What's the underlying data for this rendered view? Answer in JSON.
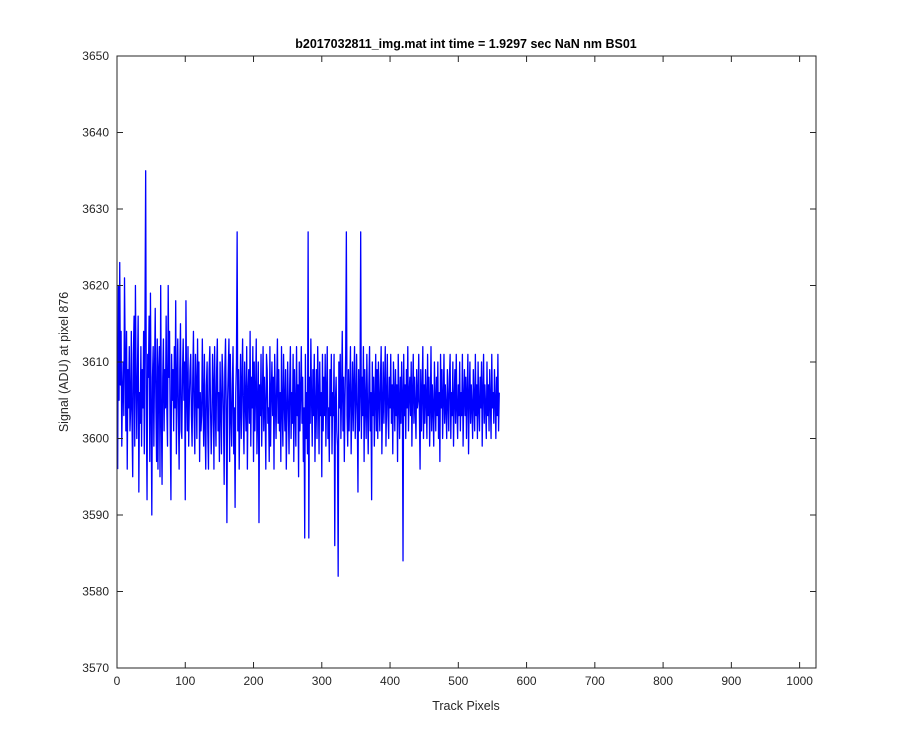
{
  "chart_data": {
    "type": "line",
    "title": "b2017032811_img.mat int time = 1.9297 sec  NaN nm BS01",
    "xlabel": "Track Pixels",
    "ylabel": "Signal (ADU) at pixel 876",
    "xlim": [
      0,
      1024
    ],
    "ylim": [
      3570,
      3650
    ],
    "xticks": [
      0,
      100,
      200,
      300,
      400,
      500,
      600,
      700,
      800,
      900,
      1000
    ],
    "yticks": [
      3570,
      3580,
      3590,
      3600,
      3610,
      3620,
      3630,
      3640,
      3650
    ],
    "grid": false,
    "line_color": "#0000ff",
    "series": [
      {
        "x_start": 1,
        "x_step": 1,
        "values": [
          3596,
          3620,
          3605,
          3623,
          3607,
          3614,
          3599,
          3606,
          3610,
          3603,
          3621,
          3611,
          3601,
          3614,
          3596,
          3609,
          3604,
          3612,
          3601,
          3604,
          3614,
          3602,
          3595,
          3611,
          3616,
          3599,
          3620,
          3608,
          3600,
          3609,
          3616,
          3593,
          3606,
          3602,
          3612,
          3599,
          3609,
          3604,
          3614,
          3598,
          3616,
          3635,
          3603,
          3592,
          3611,
          3608,
          3616,
          3597,
          3619,
          3604,
          3590,
          3608,
          3612,
          3599,
          3609,
          3617,
          3604,
          3597,
          3613,
          3596,
          3609,
          3612,
          3595,
          3620,
          3603,
          3594,
          3608,
          3613,
          3601,
          3609,
          3604,
          3616,
          3604,
          3599,
          3620,
          3608,
          3614,
          3601,
          3592,
          3611,
          3605,
          3609,
          3601,
          3612,
          3604,
          3618,
          3598,
          3607,
          3613,
          3603,
          3596,
          3609,
          3615,
          3601,
          3600,
          3609,
          3613,
          3605,
          3610,
          3592,
          3618,
          3606,
          3601,
          3612,
          3599,
          3605,
          3609,
          3611,
          3603,
          3599,
          3608,
          3614,
          3603,
          3598,
          3611,
          3607,
          3600,
          3613,
          3604,
          3610,
          3597,
          3606,
          3601,
          3603,
          3613,
          3605,
          3599,
          3611,
          3602,
          3596,
          3607,
          3610,
          3601,
          3596,
          3609,
          3612,
          3604,
          3598,
          3602,
          3611,
          3607,
          3596,
          3612,
          3604,
          3599,
          3609,
          3613,
          3601,
          3606,
          3597,
          3610,
          3604,
          3598,
          3611,
          3608,
          3603,
          3594,
          3609,
          3613,
          3604,
          3589,
          3605,
          3609,
          3613,
          3597,
          3611,
          3603,
          3599,
          3607,
          3612,
          3598,
          3604,
          3591,
          3606,
          3610,
          3627,
          3601,
          3609,
          3596,
          3604,
          3611,
          3600,
          3607,
          3613,
          3603,
          3598,
          3610,
          3605,
          3601,
          3612,
          3596,
          3606,
          3609,
          3602,
          3614,
          3599,
          3608,
          3604,
          3612,
          3597,
          3610,
          3601,
          3606,
          3613,
          3598,
          3604,
          3610,
          3589,
          3607,
          3603,
          3611,
          3599,
          3605,
          3612,
          3601,
          3608,
          3604,
          3596,
          3611,
          3609,
          3602,
          3604,
          3597,
          3612,
          3599,
          3606,
          3610,
          3603,
          3608,
          3596,
          3611,
          3605,
          3600,
          3607,
          3613,
          3602,
          3609,
          3601,
          3606,
          3597,
          3612,
          3604,
          3599,
          3611,
          3605,
          3601,
          3609,
          3596,
          3603,
          3610,
          3604,
          3598,
          3607,
          3612,
          3600,
          3606,
          3602,
          3611,
          3597,
          3609,
          3604,
          3599,
          3612,
          3603,
          3607,
          3595,
          3610,
          3601,
          3606,
          3612,
          3602,
          3608,
          3597,
          3604,
          3587,
          3611,
          3600,
          3606,
          3598,
          3627,
          3587,
          3608,
          3602,
          3613,
          3605,
          3599,
          3609,
          3603,
          3611,
          3597,
          3604,
          3609,
          3600,
          3612,
          3606,
          3598,
          3610,
          3603,
          3606,
          3595,
          3611,
          3601,
          3608,
          3603,
          3611,
          3599,
          3606,
          3612,
          3600,
          3604,
          3597,
          3609,
          3603,
          3611,
          3598,
          3606,
          3603,
          3611,
          3586,
          3605,
          3608,
          3601,
          3599,
          3582,
          3610,
          3604,
          3611,
          3600,
          3606,
          3614,
          3601,
          3608,
          3597,
          3605,
          3611,
          3627,
          3603,
          3599,
          3609,
          3601,
          3606,
          3612,
          3598,
          3604,
          3610,
          3601,
          3607,
          3612,
          3600,
          3605,
          3611,
          3603,
          3593,
          3609,
          3601,
          3606,
          3627,
          3600,
          3608,
          3603,
          3612,
          3597,
          3609,
          3605,
          3600,
          3611,
          3604,
          3598,
          3607,
          3612,
          3601,
          3606,
          3592,
          3610,
          3603,
          3608,
          3599,
          3605,
          3611,
          3601,
          3609,
          3600,
          3610,
          3605,
          3601,
          3608,
          3612,
          3598,
          3604,
          3610,
          3602,
          3607,
          3612,
          3599,
          3605,
          3611,
          3603,
          3600,
          3608,
          3604,
          3611,
          3602,
          3607,
          3598,
          3610,
          3606,
          3601,
          3609,
          3603,
          3607,
          3597,
          3611,
          3605,
          3600,
          3608,
          3602,
          3610,
          3606,
          3584,
          3611,
          3603,
          3607,
          3600,
          3609,
          3604,
          3612,
          3601,
          3606,
          3608,
          3603,
          3610,
          3599,
          3606,
          3611,
          3602,
          3608,
          3604,
          3600,
          3609,
          3604,
          3605,
          3611,
          3603,
          3596,
          3609,
          3601,
          3606,
          3612,
          3600,
          3607,
          3602,
          3609,
          3605,
          3600,
          3611,
          3603,
          3608,
          3599,
          3604,
          3612,
          3601,
          3607,
          3604,
          3599,
          3610,
          3605,
          3601,
          3608,
          3603,
          3610,
          3600,
          3606,
          3597,
          3611,
          3604,
          3609,
          3600,
          3605,
          3611,
          3602,
          3607,
          3604,
          3600,
          3609,
          3605,
          3601,
          3608,
          3611,
          3600,
          3606,
          3603,
          3610,
          3599,
          3605,
          3609,
          3602,
          3611,
          3604,
          3600,
          3607,
          3603,
          3610,
          3601,
          3606,
          3603,
          3611,
          3599,
          3605,
          3609,
          3603,
          3608,
          3600,
          3606,
          3611,
          3598,
          3605,
          3610,
          3602,
          3607,
          3604,
          3600,
          3609,
          3605,
          3601,
          3611,
          3603,
          3607,
          3600,
          3610,
          3604,
          3601,
          3608,
          3604,
          3610,
          3599,
          3606,
          3611,
          3602,
          3607,
          3604,
          3600,
          3610,
          3603,
          3607,
          3601,
          3609,
          3605,
          3600,
          3611,
          3604,
          3606,
          3602,
          3609,
          3605,
          3600,
          3608,
          3603,
          3611,
          3601,
          3606
        ]
      }
    ]
  }
}
